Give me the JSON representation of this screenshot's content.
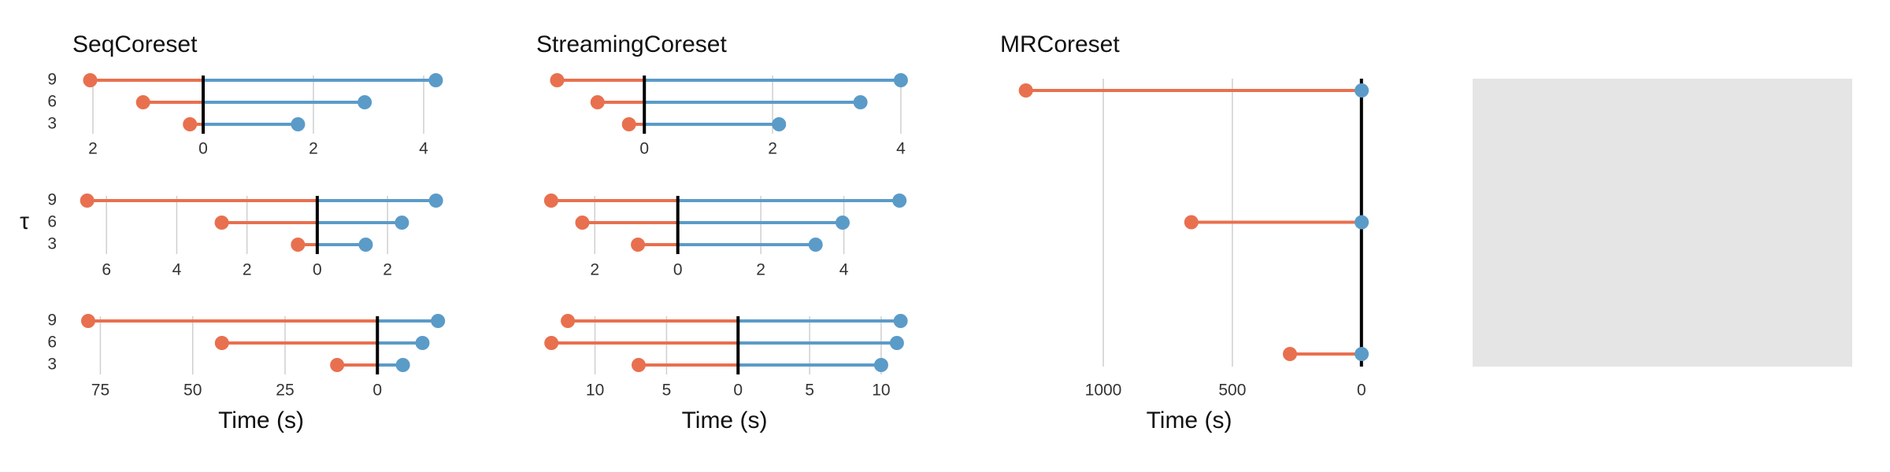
{
  "chart_data": [
    {
      "type": "dumbbell",
      "title": "SeqCoreset",
      "categories": [
        3,
        6,
        9
      ],
      "series": [
        {
          "color": "#e8704f",
          "values": [
            -0.24,
            -1.09,
            -2.05
          ]
        },
        {
          "color": "#5b9bc8",
          "values": [
            1.72,
            2.93,
            4.22
          ]
        }
      ],
      "xlim": [
        -2.2,
        4.3
      ],
      "xticks": [
        {
          "value": -2,
          "label": "2"
        },
        0,
        2,
        4
      ],
      "grid": true
    },
    {
      "type": "dumbbell",
      "ylabel": "τ",
      "categories": [
        3,
        6,
        9
      ],
      "series": [
        {
          "color": "#e8704f",
          "values": [
            -0.55,
            -2.72,
            -6.55
          ]
        },
        {
          "color": "#5b9bc8",
          "values": [
            1.38,
            2.41,
            3.38
          ]
        }
      ],
      "xlim": [
        -6.7,
        3.5
      ],
      "xticks": [
        {
          "value": -6,
          "label": "6"
        },
        {
          "value": -4,
          "label": "4"
        },
        {
          "value": -2,
          "label": "2"
        },
        0,
        2
      ],
      "grid": true
    },
    {
      "type": "dumbbell",
      "xlabel": "Time (s)",
      "categories": [
        3,
        6,
        9
      ],
      "series": [
        {
          "color": "#e8704f",
          "values": [
            -10.9,
            -42.1,
            -78.3
          ]
        },
        {
          "color": "#5b9bc8",
          "values": [
            6.9,
            12.2,
            16.4
          ]
        }
      ],
      "xlim": [
        -80,
        17
      ],
      "xticks": [
        {
          "value": -75,
          "label": "75"
        },
        {
          "value": -50,
          "label": "50"
        },
        {
          "value": -25,
          "label": "25"
        },
        0
      ],
      "grid": true
    },
    {
      "type": "dumbbell",
      "title": "StreamingCoreset",
      "categories": [
        null,
        null,
        null
      ],
      "series": [
        {
          "color": "#e8704f",
          "values": [
            -0.24,
            -0.73,
            -1.36
          ]
        },
        {
          "color": "#5b9bc8",
          "values": [
            2.1,
            3.37,
            4.0
          ]
        }
      ],
      "xlim": [
        -1.55,
        4.05
      ],
      "xticks": [
        0,
        2,
        4
      ],
      "grid": true
    },
    {
      "type": "dumbbell",
      "categories": [
        null,
        null,
        null
      ],
      "series": [
        {
          "color": "#e8704f",
          "values": [
            -0.96,
            -2.3,
            -3.05
          ]
        },
        {
          "color": "#5b9bc8",
          "values": [
            3.32,
            3.97,
            5.34
          ]
        }
      ],
      "xlim": [
        -3.2,
        5.45
      ],
      "xticks": [
        {
          "value": -2,
          "label": "2"
        },
        0,
        2,
        4
      ],
      "grid": true
    },
    {
      "type": "dumbbell",
      "xlabel": "Time (s)",
      "categories": [
        null,
        null,
        null
      ],
      "series": [
        {
          "color": "#e8704f",
          "values": [
            -6.95,
            -13.05,
            -11.9
          ]
        },
        {
          "color": "#5b9bc8",
          "values": [
            10.0,
            11.1,
            11.36
          ]
        }
      ],
      "xlim": [
        -13.5,
        11.6
      ],
      "xticks": [
        {
          "value": -10,
          "label": "10"
        },
        {
          "value": -5,
          "label": "5"
        },
        0,
        5,
        10
      ],
      "grid": true
    },
    {
      "type": "dumbbell",
      "title": "MRCoreset",
      "xlabel": "Time (s)",
      "categories": [
        null,
        null,
        null
      ],
      "series": [
        {
          "color": "#e8704f",
          "values": [
            -277,
            -659,
            -1300
          ]
        },
        {
          "color": "#5b9bc8",
          "values": [
            1,
            1,
            1
          ]
        }
      ],
      "xlim": [
        -1360,
        25
      ],
      "xticks": [
        {
          "value": -1000,
          "label": "1000"
        },
        {
          "value": -500,
          "label": "500"
        },
        0
      ],
      "grid": true
    }
  ]
}
